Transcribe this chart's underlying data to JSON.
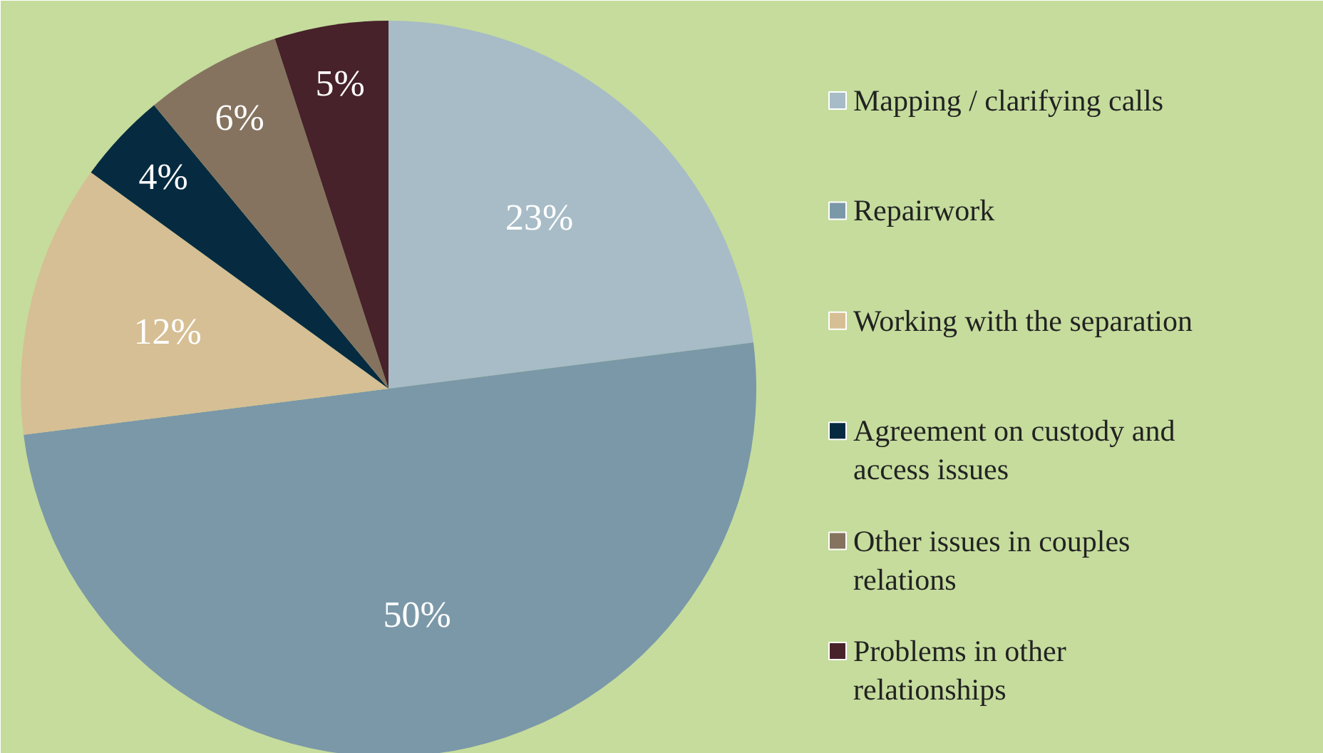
{
  "chart_data": {
    "type": "pie",
    "categories": [
      "Mapping / clarifying calls",
      "Repairwork",
      "Working with the separation",
      "Agreement on custody and access issues",
      "Other issues in couples relations",
      "Problems in other relationships"
    ],
    "values": [
      23,
      50,
      12,
      4,
      6,
      5
    ],
    "colors": [
      "#a7bcc6",
      "#7b98a8",
      "#d6bf94",
      "#062b40",
      "#85735f",
      "#47222a"
    ],
    "value_labels": [
      "23%",
      "50%",
      "12%",
      "4%",
      "6%",
      "5%"
    ],
    "legend": "right"
  }
}
